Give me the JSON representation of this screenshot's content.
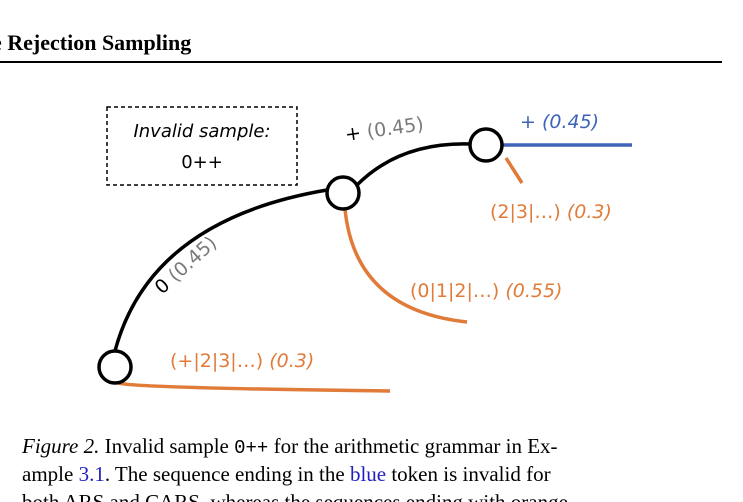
{
  "header": {
    "title": "e Rejection Sampling"
  },
  "diagram": {
    "box": {
      "title": "Invalid sample:",
      "sample": "0++"
    },
    "edges": [
      {
        "token": "0",
        "prob": "(0.45)"
      },
      {
        "token": "+",
        "prob": "(0.45)"
      },
      {
        "token": "+",
        "prob": "(0.45)"
      }
    ],
    "branches": [
      {
        "tokens": "(2|3|…)",
        "prob": "(0.3)"
      },
      {
        "tokens": "(0|1|2|…)",
        "prob": "(0.55)"
      },
      {
        "tokens": "(+|2|3|…)",
        "prob": "(0.3)"
      }
    ]
  },
  "caption": {
    "label": "Figure 2.",
    "line1": [
      " Invalid sample ",
      "0++",
      " for the arithmetic grammar in Ex-"
    ],
    "line2": [
      "ample ",
      "3.1",
      ". The sequence ending in the ",
      "blue",
      " token is invalid for"
    ],
    "line3": "both ARS and CARS, whereas the sequences ending with orange"
  }
}
